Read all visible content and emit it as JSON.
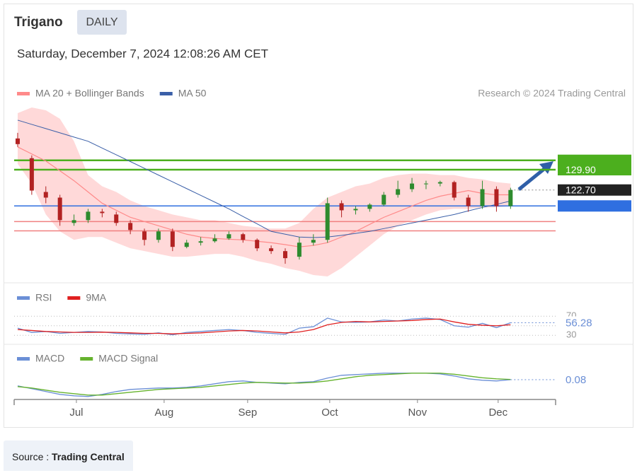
{
  "header": {
    "title": "Trigano",
    "badge": "DAILY",
    "timestamp": "Saturday, December 7, 2024 12:08:26 AM CET",
    "credit": "Research © 2024 Trading Central"
  },
  "chart_data": [
    {
      "type": "candlestick",
      "xlim": [
        -0.25,
        38.2
      ],
      "ylim": [
        91,
        150
      ],
      "ohlc": [
        [
          141,
          143,
          138,
          139
        ],
        [
          134,
          135,
          121,
          122.5
        ],
        [
          122,
          124,
          118,
          120
        ],
        [
          120,
          121,
          110,
          112
        ],
        [
          111,
          114,
          110,
          112
        ],
        [
          112,
          116,
          111,
          115
        ],
        [
          115,
          116,
          113,
          114.5
        ],
        [
          114,
          115,
          110,
          111
        ],
        [
          111,
          112,
          107,
          108.5
        ],
        [
          108,
          109,
          103,
          105
        ],
        [
          105,
          109,
          104,
          108
        ],
        [
          108,
          109,
          101,
          102.5
        ],
        [
          102.5,
          105,
          102,
          104
        ],
        [
          104,
          106,
          103,
          104.5
        ],
        [
          104.5,
          107,
          104,
          105.5
        ],
        [
          105.5,
          108,
          105,
          107
        ],
        [
          107,
          107.5,
          104,
          105
        ],
        [
          105,
          105.5,
          101,
          102
        ],
        [
          102,
          103,
          100,
          101
        ],
        [
          101,
          102,
          96.5,
          98.5
        ],
        [
          99,
          106,
          98,
          104
        ],
        [
          104,
          107,
          103,
          105
        ],
        [
          105,
          120,
          104,
          118
        ],
        [
          118,
          119,
          113,
          115.5
        ],
        [
          115.5,
          117,
          114,
          116
        ],
        [
          116,
          118,
          115,
          117.5
        ],
        [
          117.5,
          122,
          117,
          121
        ],
        [
          121,
          126,
          120,
          123
        ],
        [
          123,
          127,
          122,
          125
        ],
        [
          125,
          126,
          123,
          125
        ],
        [
          125,
          126,
          124,
          125.5
        ],
        [
          125.5,
          126,
          119,
          120
        ],
        [
          120,
          121,
          115,
          117
        ],
        [
          117,
          126,
          116,
          123
        ],
        [
          123,
          124,
          115,
          117
        ],
        [
          117,
          123.5,
          116,
          122.7
        ]
      ],
      "up_color": "#2e8b2e",
      "down_color": "#b22222",
      "series": [
        {
          "name": "MA 20 + Bollinger Bands",
          "color": "#ff8a8a",
          "values": [
            138,
            135.5,
            133,
            129.5,
            126,
            122,
            118,
            115.5,
            113,
            111.5,
            110,
            108.5,
            107,
            106,
            105.5,
            105.2,
            105,
            104.5,
            104,
            103.3,
            102.5,
            103,
            104,
            106,
            108,
            110.5,
            113,
            115,
            117,
            119,
            120.5,
            121.5,
            122.5,
            121.5,
            121,
            121
          ]
        },
        {
          "name": "MA 50",
          "color": "#3a5fa8",
          "values": [
            147.5,
            146,
            144.5,
            143,
            141.5,
            140,
            137.6,
            135.2,
            132.8,
            130.4,
            128,
            125.6,
            123.2,
            120.8,
            118.4,
            116,
            113.3,
            110.7,
            108,
            107,
            106,
            105.8,
            106,
            106.6,
            107.3,
            108,
            109,
            110,
            111,
            112,
            113,
            114,
            115.3,
            116.5,
            117.6,
            118.8
          ]
        }
      ],
      "bands": {
        "color": "#ffd9d9",
        "upper": [
          150,
          152,
          151,
          148,
          140,
          128,
          124,
          122,
          119,
          117,
          115.5,
          114,
          113,
          112,
          112,
          111,
          110,
          109.5,
          109,
          109,
          111,
          116,
          120,
          122,
          124,
          125,
          127,
          128,
          128.5,
          128.5,
          128,
          128,
          127,
          126.5,
          125.5,
          125
        ],
        "lower": [
          132,
          125,
          114,
          108,
          105,
          106,
          106,
          104,
          102,
          101,
          100,
          99,
          99,
          99.5,
          100,
          100,
          99,
          97.5,
          96.5,
          95,
          94,
          92.5,
          92,
          95,
          99,
          103,
          107,
          110,
          112,
          114,
          115.5,
          116,
          116,
          116.5,
          116.5,
          117
        ]
      },
      "levels": [
        {
          "value": 133.25,
          "color": "#4caf1e",
          "style": "box"
        },
        {
          "value": 129.9,
          "label": "129.90",
          "color": "#4caf1e",
          "style": "box"
        },
        {
          "value": 122.7,
          "label": "122.70",
          "color": "#222222",
          "style": "current"
        },
        {
          "value": 117.04,
          "color": "#2f6fe0",
          "style": "box"
        },
        {
          "value": 111.49,
          "color": "#f08080",
          "style": "text"
        },
        {
          "value": 108.19,
          "color": "#f08080",
          "style": "text"
        }
      ]
    },
    {
      "type": "line",
      "xlim": [
        -0.25,
        38.2
      ],
      "ylim": [
        14,
        140
      ],
      "yticks": [
        30,
        50,
        70
      ],
      "series": [
        {
          "name": "RSI",
          "color": "#6b8fd6",
          "values": [
            45,
            36,
            38,
            34,
            36,
            38,
            37,
            34,
            33,
            32,
            35,
            31,
            36,
            38,
            40,
            42,
            40,
            36,
            34,
            32,
            45,
            48,
            66,
            58,
            57,
            58,
            62,
            60,
            64,
            66,
            63,
            50,
            47,
            55,
            46,
            56.28
          ]
        },
        {
          "name": "9MA",
          "color": "#e02020",
          "values": [
            42,
            40,
            38,
            37,
            36,
            36,
            36.5,
            36,
            35,
            34,
            34,
            33,
            34,
            35,
            37,
            39,
            40,
            39,
            37,
            35,
            37,
            42,
            52,
            57,
            59,
            58,
            59,
            60,
            61,
            63,
            64,
            58,
            53,
            51,
            50,
            52
          ]
        }
      ]
    },
    {
      "type": "line",
      "xlim": [
        -0.25,
        38.2
      ],
      "ylim": [
        -2.72,
        4.78
      ],
      "xticks": [
        {
          "value": 4.17,
          "label": "Jul"
        },
        {
          "value": 10.4,
          "label": "Aug"
        },
        {
          "value": 16.33,
          "label": "Sep"
        },
        {
          "value": 22.16,
          "label": "Oct"
        },
        {
          "value": 28.39,
          "label": "Nov"
        },
        {
          "value": 34.12,
          "label": "Dec"
        }
      ],
      "series": [
        {
          "name": "MACD",
          "color": "#6b8fd6",
          "values": [
            -0.8,
            -1.2,
            -1.6,
            -2,
            -2.2,
            -2.3,
            -2,
            -1.6,
            -1.3,
            -1.2,
            -1.1,
            -1.1,
            -1,
            -0.8,
            -0.5,
            -0.2,
            -0.1,
            -0.3,
            -0.4,
            -0.5,
            -0.3,
            -0.2,
            0.3,
            0.7,
            0.8,
            0.9,
            1,
            1,
            1,
            1,
            0.9,
            0.6,
            0.2,
            0,
            -0.1,
            0.08
          ]
        },
        {
          "name": "MACD Signal",
          "color": "#66b32e",
          "values": [
            -0.9,
            -1.1,
            -1.4,
            -1.7,
            -1.9,
            -2.1,
            -2.1,
            -1.9,
            -1.7,
            -1.5,
            -1.3,
            -1.2,
            -1.1,
            -1,
            -0.8,
            -0.6,
            -0.4,
            -0.3,
            -0.35,
            -0.4,
            -0.4,
            -0.3,
            -0.1,
            0.2,
            0.5,
            0.7,
            0.8,
            0.9,
            1,
            1,
            1,
            0.85,
            0.6,
            0.35,
            0.2,
            0.12
          ]
        }
      ]
    }
  ],
  "source": {
    "label": "Source :",
    "name": "Trading Central"
  }
}
